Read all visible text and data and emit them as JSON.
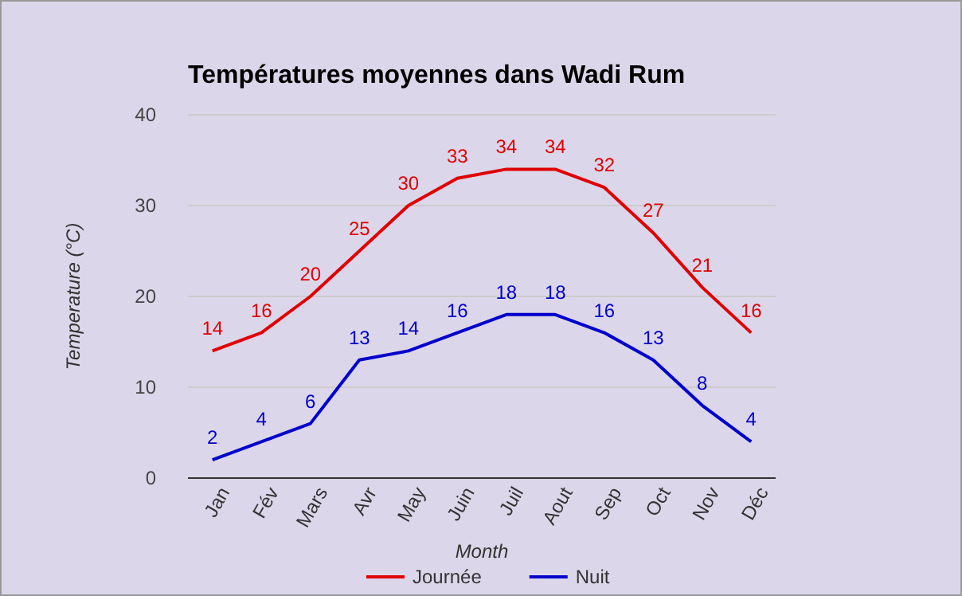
{
  "chart_data": {
    "type": "line",
    "title": "Températures moyennes dans Wadi Rum",
    "xlabel": "Month",
    "ylabel": "Temperature (°C)",
    "categories": [
      "Jan",
      "Fév",
      "Mars",
      "Avr",
      "May",
      "Juin",
      "Juil",
      "Aout",
      "Sep",
      "Oct",
      "Nov",
      "Déc"
    ],
    "series": [
      {
        "name": "Journée",
        "color": "#e00000",
        "values": [
          14,
          16,
          20,
          25,
          30,
          33,
          34,
          34,
          32,
          27,
          21,
          16
        ]
      },
      {
        "name": "Nuit",
        "color": "#0000cc",
        "values": [
          2,
          4,
          6,
          13,
          14,
          16,
          18,
          18,
          16,
          13,
          8,
          4
        ]
      }
    ],
    "ylim": [
      0,
      40
    ],
    "yticks": [
      0,
      10,
      20,
      30,
      40
    ],
    "grid": "y",
    "legend": "bottom",
    "data_labels": true,
    "marker": "none",
    "line_style": "solid"
  }
}
